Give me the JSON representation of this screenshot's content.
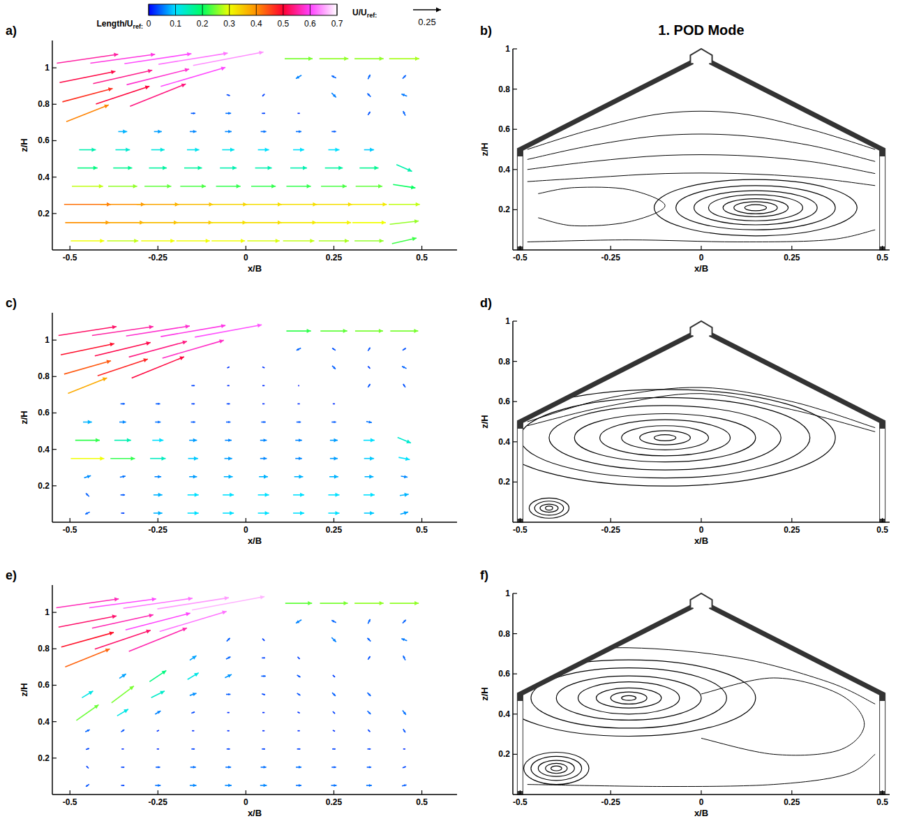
{
  "figure": {
    "title": "1. POD Mode",
    "colorbar": {
      "label": "Length/U",
      "label_sub": "ref:",
      "range": [
        0,
        0.7
      ],
      "ticks": [
        0,
        0.1,
        0.2,
        0.3,
        0.4,
        0.5,
        0.6,
        0.7
      ],
      "colors": [
        "#0000ff",
        "#00e0ff",
        "#00ff60",
        "#f0ff00",
        "#ff9000",
        "#ff0030",
        "#ff40ff",
        "#ffffff"
      ]
    },
    "reference_vector": {
      "label": "U/U",
      "label_sub": "ref:",
      "value": 0.25
    },
    "vector_grid": {
      "x": [
        -0.45,
        -0.35,
        -0.25,
        -0.15,
        -0.05,
        0.05,
        0.15,
        0.25,
        0.35,
        0.45
      ],
      "z": [
        0.05,
        0.15,
        0.25,
        0.35,
        0.45,
        0.55,
        0.65,
        0.75,
        0.85,
        0.95,
        1.05
      ]
    },
    "building": {
      "wall_x": [
        -0.5,
        0.5
      ],
      "eave_z": 0.5,
      "ridge_z": 0.93,
      "vent_half_width": 0.03,
      "vent_z": 1.0
    }
  },
  "chart_data": [
    {
      "type": "vector",
      "label": "a)",
      "x_label": "x/B",
      "y_label": "z/H",
      "xlim": [
        -0.55,
        0.6
      ],
      "ylim": [
        0,
        1.15
      ],
      "xticks": [
        -0.5,
        -0.25,
        0,
        0.25,
        0.5
      ],
      "yticks": [
        0.2,
        0.4,
        0.6,
        0.8,
        1
      ],
      "u": [
        [
          0.3,
          0.28,
          0.3,
          0.3,
          0.3,
          0.29,
          0.28,
          0.27,
          0.26,
          0.22
        ],
        [
          0.4,
          0.38,
          0.36,
          0.35,
          0.33,
          0.33,
          0.32,
          0.31,
          0.3,
          0.26
        ],
        [
          0.42,
          0.4,
          0.38,
          0.36,
          0.34,
          0.33,
          0.33,
          0.33,
          0.32,
          0.28
        ],
        [
          0.28,
          0.26,
          0.24,
          0.23,
          0.22,
          0.22,
          0.22,
          0.23,
          0.24,
          0.2
        ],
        [
          0.18,
          0.17,
          0.16,
          0.16,
          0.15,
          0.15,
          0.15,
          0.16,
          0.17,
          0.14
        ],
        [
          0.15,
          0.13,
          0.12,
          0.11,
          0.11,
          0.1,
          0.1,
          0.1,
          0.09,
          null
        ],
        [
          null,
          0.08,
          0.07,
          0.06,
          0.06,
          0.05,
          0.05,
          0.04,
          null,
          null
        ],
        [
          0.38,
          null,
          null,
          0.04,
          0.05,
          0.03,
          0.02,
          null,
          0.02,
          -0.02
        ],
        [
          0.45,
          0.48,
          0.5,
          null,
          0.03,
          -0.02,
          null,
          0.04,
          -0.03,
          -0.05
        ],
        [
          0.5,
          0.53,
          0.56,
          0.58,
          null,
          null,
          -0.05,
          -0.04,
          0.02,
          0.03
        ],
        [
          0.55,
          0.58,
          0.6,
          0.62,
          0.63,
          null,
          0.25,
          0.26,
          0.26,
          0.27
        ]
      ],
      "w": [
        [
          0,
          0,
          0,
          0,
          0,
          0,
          0,
          0,
          0,
          0.05
        ],
        [
          0,
          0,
          0,
          0,
          0,
          0,
          0,
          0,
          0,
          0.03
        ],
        [
          0,
          0,
          0,
          0,
          0,
          0,
          0,
          0,
          0,
          0
        ],
        [
          0,
          0,
          0,
          0,
          0,
          0,
          0,
          0,
          0,
          -0.03
        ],
        [
          0,
          0,
          0,
          0,
          0,
          0,
          0,
          0,
          0,
          -0.06
        ],
        [
          0,
          0,
          0,
          0,
          0,
          0,
          0,
          0,
          0,
          null
        ],
        [
          null,
          0,
          0,
          0,
          0,
          0,
          0,
          0,
          null,
          null
        ],
        [
          0.15,
          null,
          null,
          0,
          0,
          0,
          0,
          null,
          0.03,
          0.04
        ],
        [
          0.12,
          0.16,
          0.2,
          null,
          -0.01,
          -0.02,
          null,
          -0.04,
          0.03,
          0.02
        ],
        [
          0.1,
          0.12,
          0.14,
          0.17,
          null,
          null,
          -0.03,
          0.02,
          0.04,
          0.03
        ],
        [
          0.08,
          0.08,
          0.09,
          0.1,
          0.12,
          null,
          0,
          0,
          0,
          0
        ]
      ]
    },
    {
      "type": "streamline",
      "label": "b)",
      "x_label": "x/B",
      "y_label": "z/H",
      "xlim": [
        -0.52,
        0.52
      ],
      "ylim": [
        0,
        1
      ],
      "xticks": [
        -0.5,
        -0.25,
        0,
        0.25,
        0.5
      ],
      "yticks": [
        0.2,
        0.4,
        0.6,
        0.8,
        1
      ],
      "vortices": [
        {
          "x": 0.15,
          "z": 0.21,
          "rx": [
            0.03,
            0.06,
            0.09,
            0.13,
            0.17,
            0.22,
            0.28
          ],
          "rz": [
            0.015,
            0.03,
            0.045,
            0.065,
            0.085,
            0.11,
            0.14
          ]
        }
      ],
      "streamlines": [
        {
          "x": [
            -0.48,
            -0.3,
            -0.1,
            0.1,
            0.3,
            0.48
          ],
          "z": [
            0.5,
            0.6,
            0.68,
            0.68,
            0.6,
            0.5
          ]
        },
        {
          "x": [
            -0.48,
            -0.3,
            -0.1,
            0.1,
            0.3,
            0.48
          ],
          "z": [
            0.45,
            0.52,
            0.57,
            0.57,
            0.52,
            0.44
          ]
        },
        {
          "x": [
            -0.48,
            -0.3,
            -0.1,
            0.1,
            0.3,
            0.48
          ],
          "z": [
            0.4,
            0.44,
            0.47,
            0.47,
            0.44,
            0.38
          ]
        },
        {
          "x": [
            -0.48,
            -0.3,
            -0.1,
            0.1,
            0.3,
            0.48
          ],
          "z": [
            0.34,
            0.36,
            0.38,
            0.38,
            0.36,
            0.32
          ]
        },
        {
          "x": [
            -0.45,
            -0.35,
            -0.2,
            -0.1,
            -0.2,
            -0.35,
            -0.45
          ],
          "z": [
            0.28,
            0.31,
            0.3,
            0.22,
            0.14,
            0.12,
            0.16
          ]
        },
        {
          "x": [
            -0.48,
            -0.2,
            0.1,
            0.35,
            0.48
          ],
          "z": [
            0.04,
            0.05,
            0.04,
            0.05,
            0.1
          ]
        }
      ]
    },
    {
      "type": "vector",
      "label": "c)",
      "x_label": "x/B",
      "y_label": "z/H",
      "xlim": [
        -0.55,
        0.6
      ],
      "ylim": [
        0,
        1.15
      ],
      "xticks": [
        -0.5,
        -0.25,
        0,
        0.25,
        0.5
      ],
      "yticks": [
        0.2,
        0.4,
        0.6,
        0.8,
        1
      ],
      "u": [
        [
          -0.04,
          0.03,
          0.08,
          0.1,
          0.1,
          0.1,
          0.1,
          0.1,
          0.09,
          0.07
        ],
        [
          -0.03,
          0.04,
          0.08,
          0.1,
          0.1,
          0.1,
          0.1,
          0.1,
          0.1,
          0.08
        ],
        [
          0.06,
          0.05,
          0.06,
          0.07,
          0.08,
          0.08,
          0.08,
          0.08,
          0.08,
          0.06
        ],
        [
          0.3,
          0.22,
          0.14,
          0.09,
          0.07,
          0.06,
          0.06,
          0.07,
          0.09,
          0.1
        ],
        [
          0.22,
          0.15,
          0.1,
          0.07,
          0.06,
          0.06,
          0.06,
          0.07,
          0.1,
          0.12
        ],
        [
          0.08,
          0.06,
          0.05,
          0.04,
          0.04,
          0.04,
          0.04,
          0.04,
          0.05,
          null
        ],
        [
          null,
          0.04,
          0.04,
          0.03,
          0.03,
          0.02,
          0.02,
          0.02,
          null,
          null
        ],
        [
          0.35,
          null,
          null,
          0.03,
          0.02,
          0.02,
          0.01,
          null,
          0.02,
          -0.02
        ],
        [
          0.42,
          0.45,
          0.47,
          null,
          0.02,
          0.02,
          null,
          0.03,
          -0.02,
          -0.04
        ],
        [
          0.48,
          0.5,
          0.52,
          0.55,
          null,
          null,
          -0.04,
          -0.03,
          0.02,
          0.03
        ],
        [
          0.52,
          0.55,
          0.57,
          0.58,
          0.6,
          null,
          0.22,
          0.24,
          0.25,
          0.25
        ]
      ],
      "w": [
        [
          -0.02,
          0,
          0,
          0,
          0,
          0,
          0,
          0,
          0,
          0.02
        ],
        [
          0.03,
          0,
          0,
          0,
          0,
          0,
          0,
          0,
          0,
          0.01
        ],
        [
          0.02,
          0.01,
          0,
          0,
          0,
          0,
          0,
          0,
          0,
          -0.01
        ],
        [
          0,
          0,
          0,
          0,
          0,
          0,
          0,
          0,
          0,
          -0.02
        ],
        [
          0,
          0,
          0,
          0,
          0,
          0,
          0,
          0,
          0,
          -0.05
        ],
        [
          0,
          0,
          0,
          0,
          0,
          0,
          0,
          0,
          -0.01,
          null
        ],
        [
          null,
          0,
          0,
          0,
          0,
          0,
          0,
          0,
          null,
          null
        ],
        [
          0.14,
          null,
          null,
          0,
          0,
          0,
          0,
          null,
          0.03,
          0.03
        ],
        [
          0.12,
          0.15,
          0.19,
          null,
          0.01,
          -0.01,
          null,
          -0.03,
          0.02,
          0.02
        ],
        [
          0.1,
          0.12,
          0.14,
          0.16,
          null,
          null,
          -0.02,
          0.02,
          0.03,
          0.02
        ],
        [
          0.08,
          0.08,
          0.09,
          0.1,
          0.11,
          null,
          0,
          0,
          0,
          0
        ]
      ]
    },
    {
      "type": "streamline",
      "label": "d)",
      "x_label": "x/B",
      "y_label": "z/H",
      "xlim": [
        -0.52,
        0.52
      ],
      "ylim": [
        0,
        1
      ],
      "xticks": [
        -0.5,
        -0.25,
        0,
        0.25,
        0.5
      ],
      "yticks": [
        0.2,
        0.4,
        0.6,
        0.8,
        1
      ],
      "vortices": [
        {
          "x": -0.1,
          "z": 0.42,
          "rx": [
            0.03,
            0.07,
            0.12,
            0.18,
            0.25,
            0.32,
            0.4,
            0.47
          ],
          "rz": [
            0.015,
            0.035,
            0.06,
            0.09,
            0.12,
            0.16,
            0.2,
            0.24
          ]
        },
        {
          "x": -0.42,
          "z": 0.07,
          "rx": [
            0.01,
            0.025,
            0.04,
            0.055
          ],
          "rz": [
            0.01,
            0.02,
            0.035,
            0.05
          ]
        }
      ],
      "streamlines": [
        {
          "x": [
            -0.48,
            -0.25,
            0,
            0.25,
            0.48
          ],
          "z": [
            0.5,
            0.62,
            0.67,
            0.6,
            0.47
          ]
        },
        {
          "x": [
            -0.48,
            -0.25,
            0,
            0.25,
            0.48
          ],
          "z": [
            0.48,
            0.58,
            0.64,
            0.56,
            0.45
          ]
        }
      ]
    },
    {
      "type": "vector",
      "label": "e)",
      "x_label": "x/B",
      "y_label": "z/H",
      "xlim": [
        -0.55,
        0.6
      ],
      "ylim": [
        0,
        1.15
      ],
      "xticks": [
        -0.5,
        -0.25,
        0,
        0.25,
        0.5
      ],
      "yticks": [
        0.2,
        0.4,
        0.6,
        0.8,
        1
      ],
      "u": [
        [
          -0.03,
          0.03,
          0.05,
          0.06,
          0.06,
          0.06,
          0.05,
          0.05,
          0.05,
          0.04
        ],
        [
          -0.02,
          0.03,
          0.04,
          0.05,
          0.05,
          0.05,
          0.05,
          0.04,
          0.04,
          0.03
        ],
        [
          0.03,
          0.02,
          0.02,
          0.03,
          0.03,
          0.03,
          0.03,
          0.03,
          0.03,
          0.02
        ],
        [
          0.04,
          0.03,
          0.02,
          0.02,
          0.02,
          0.02,
          0.02,
          0.02,
          0.02,
          0.02
        ],
        [
          0.2,
          0.1,
          0.05,
          0.03,
          0.02,
          0.02,
          0.02,
          0.02,
          0.03,
          0.03
        ],
        [
          0.1,
          0.2,
          0.12,
          0.06,
          0.04,
          0.03,
          0.03,
          0.03,
          0.03,
          null
        ],
        [
          null,
          0.06,
          0.15,
          0.1,
          0.06,
          0.04,
          0.03,
          0.02,
          null,
          null
        ],
        [
          0.4,
          null,
          null,
          0.06,
          0.04,
          0.03,
          0.02,
          null,
          0.02,
          -0.02
        ],
        [
          0.47,
          0.5,
          0.52,
          null,
          0.03,
          0.02,
          null,
          0.04,
          -0.03,
          -0.05
        ],
        [
          0.52,
          0.55,
          0.58,
          0.6,
          null,
          null,
          -0.05,
          -0.04,
          0.02,
          0.03
        ],
        [
          0.56,
          0.6,
          0.62,
          0.64,
          0.65,
          null,
          0.24,
          0.25,
          0.26,
          0.26
        ]
      ],
      "w": [
        [
          -0.02,
          0,
          0,
          0,
          0,
          0,
          0,
          0,
          0,
          0.01
        ],
        [
          0.02,
          0,
          0,
          0,
          0,
          0,
          0,
          0,
          0,
          0.01
        ],
        [
          0.01,
          0,
          0,
          0,
          0,
          0,
          0,
          0,
          0,
          0
        ],
        [
          0.02,
          0.02,
          0.01,
          0,
          0,
          0,
          0,
          -0.01,
          -0.02,
          -0.03
        ],
        [
          0.14,
          0.06,
          0.03,
          0.01,
          0,
          0,
          -0.01,
          -0.02,
          -0.03,
          -0.04
        ],
        [
          0.06,
          0.15,
          0.06,
          0.02,
          0,
          -0.01,
          -0.02,
          -0.03,
          -0.03,
          null
        ],
        [
          null,
          0.04,
          0.1,
          0.06,
          0.03,
          0,
          -0.02,
          -0.02,
          null,
          null
        ],
        [
          0.16,
          null,
          null,
          0.04,
          0.02,
          0,
          -0.02,
          null,
          0.03,
          0.04
        ],
        [
          0.13,
          0.17,
          0.21,
          null,
          0.03,
          -0.02,
          null,
          -0.04,
          0.03,
          0.02
        ],
        [
          0.1,
          0.12,
          0.15,
          0.18,
          null,
          null,
          -0.03,
          0.02,
          0.04,
          0.03
        ],
        [
          0.08,
          0.08,
          0.09,
          0.1,
          0.12,
          null,
          0,
          0,
          0,
          0
        ]
      ]
    },
    {
      "type": "streamline",
      "label": "f)",
      "x_label": "x/B",
      "y_label": "z/H",
      "xlim": [
        -0.52,
        0.52
      ],
      "ylim": [
        0,
        1
      ],
      "xticks": [
        -0.5,
        -0.25,
        0,
        0.25,
        0.5
      ],
      "yticks": [
        0.2,
        0.4,
        0.6,
        0.8,
        1
      ],
      "vortices": [
        {
          "x": -0.2,
          "z": 0.48,
          "rx": [
            0.02,
            0.05,
            0.09,
            0.14,
            0.2,
            0.27,
            0.35
          ],
          "rz": [
            0.012,
            0.03,
            0.05,
            0.08,
            0.11,
            0.15,
            0.19
          ]
        },
        {
          "x": -0.4,
          "z": 0.13,
          "rx": [
            0.015,
            0.03,
            0.05,
            0.07,
            0.09
          ],
          "rz": [
            0.012,
            0.025,
            0.04,
            0.06,
            0.08
          ]
        }
      ],
      "streamlines": [
        {
          "x": [
            -0.45,
            -0.2,
            0.1,
            0.35,
            0.48
          ],
          "z": [
            0.7,
            0.73,
            0.68,
            0.56,
            0.45
          ]
        },
        {
          "x": [
            -0.48,
            -0.1,
            0.2,
            0.4,
            0.48
          ],
          "z": [
            0.05,
            0.04,
            0.05,
            0.1,
            0.2
          ]
        },
        {
          "x": [
            0,
            0.2,
            0.38,
            0.45,
            0.38,
            0.2,
            0
          ],
          "z": [
            0.5,
            0.58,
            0.5,
            0.35,
            0.22,
            0.2,
            0.28
          ]
        }
      ]
    }
  ]
}
